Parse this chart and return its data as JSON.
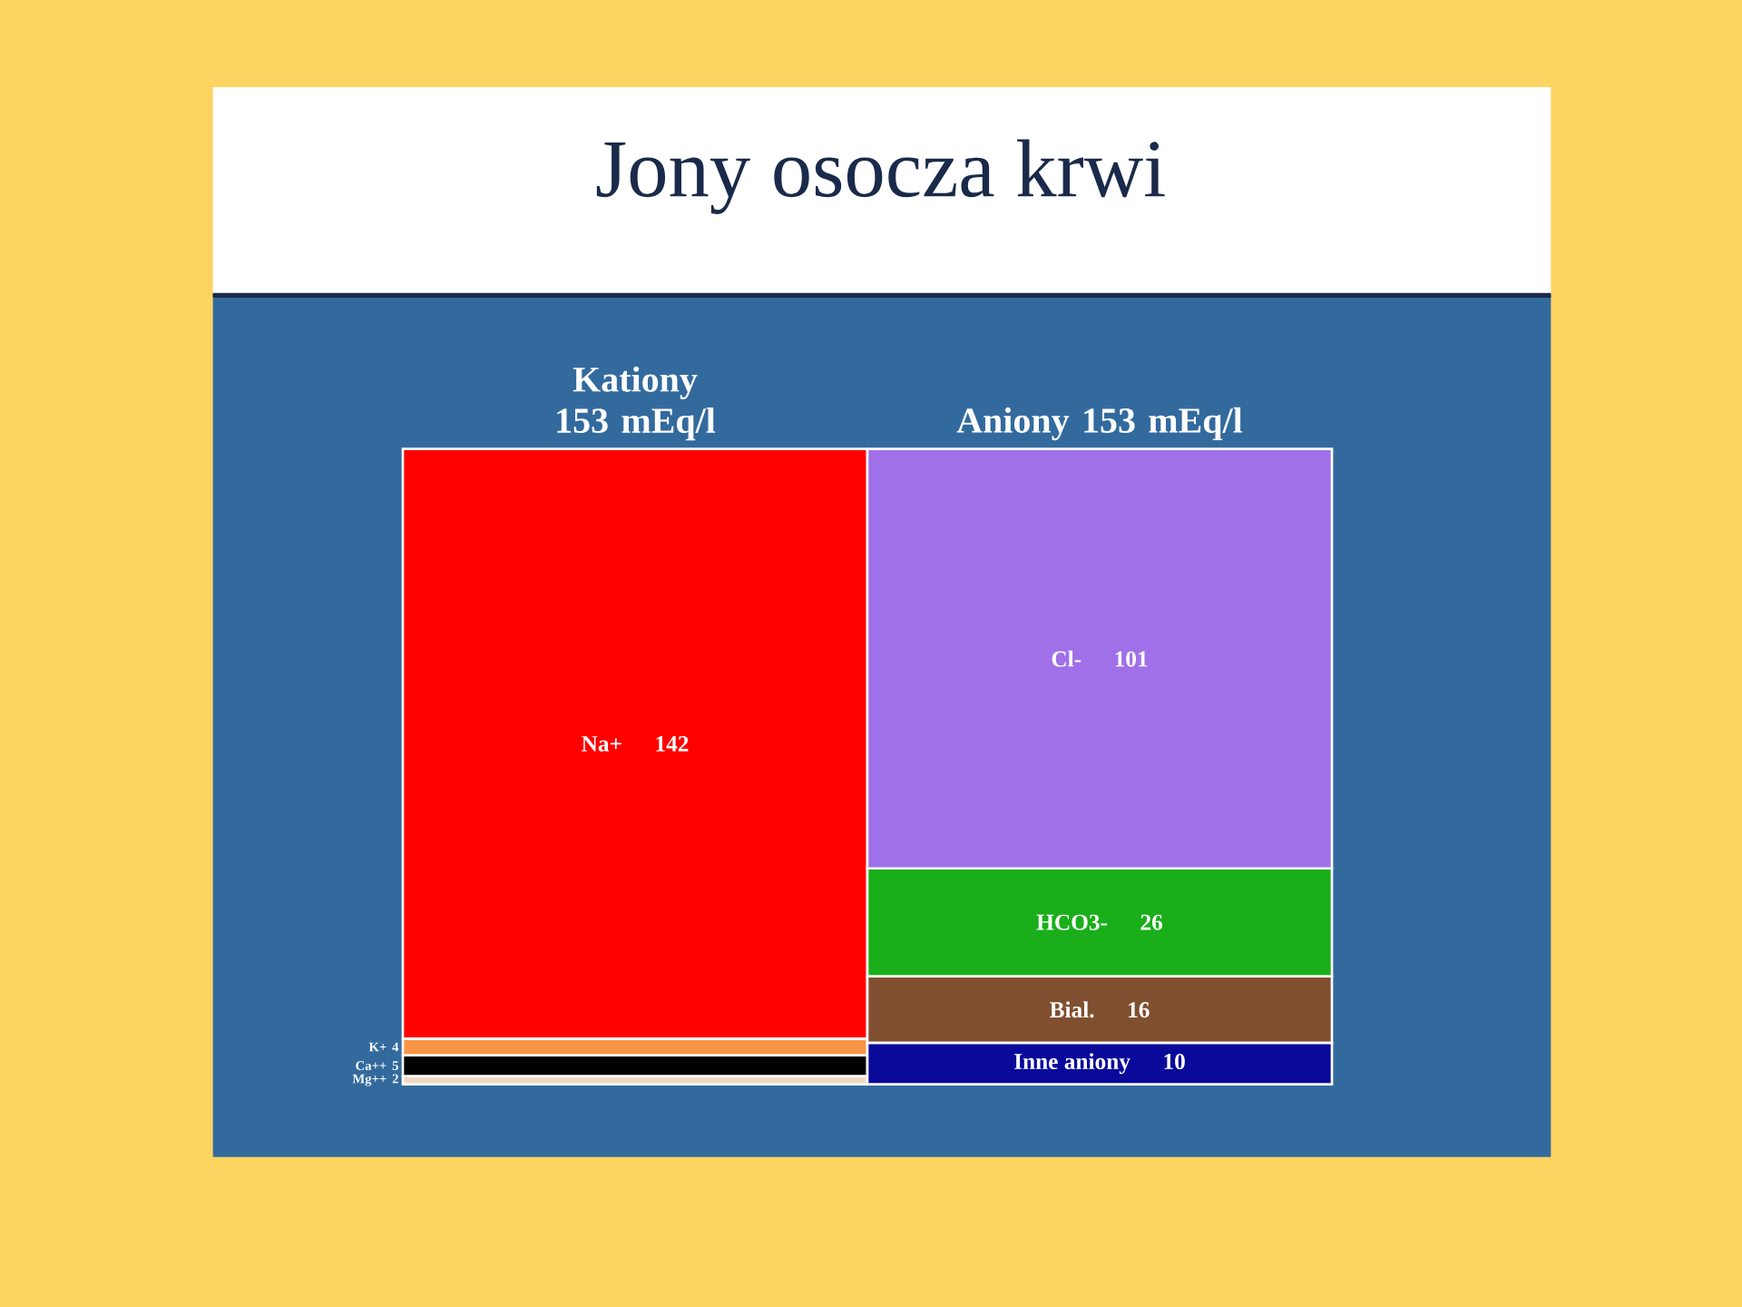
{
  "chart_data": {
    "type": "bar",
    "stacked": true,
    "data_labels": true,
    "title": "Jony osocza krwi",
    "categories": [
      "Kationy 153 mEq/l",
      "Aniony 153 mEq/l"
    ],
    "series": [
      {
        "name": "Mg++",
        "color": "#eed9c4",
        "values": [
          2,
          null
        ]
      },
      {
        "name": "Ca++",
        "color": "#000000",
        "values": [
          5,
          null
        ]
      },
      {
        "name": "K+",
        "color": "#f79646",
        "values": [
          4,
          null
        ]
      },
      {
        "name": "Na+",
        "color": "#ff0000",
        "values": [
          142,
          null
        ]
      },
      {
        "name": "Inne aniony",
        "color": "#0a0a9a",
        "values": [
          null,
          10
        ]
      },
      {
        "name": "Bial.",
        "color": "#7f4f2f",
        "values": [
          null,
          16
        ]
      },
      {
        "name": "HCO3-",
        "color": "#1aaf1a",
        "values": [
          null,
          26
        ]
      },
      {
        "name": "Cl-",
        "color": "#a070e8",
        "values": [
          null,
          101
        ]
      }
    ]
  }
}
